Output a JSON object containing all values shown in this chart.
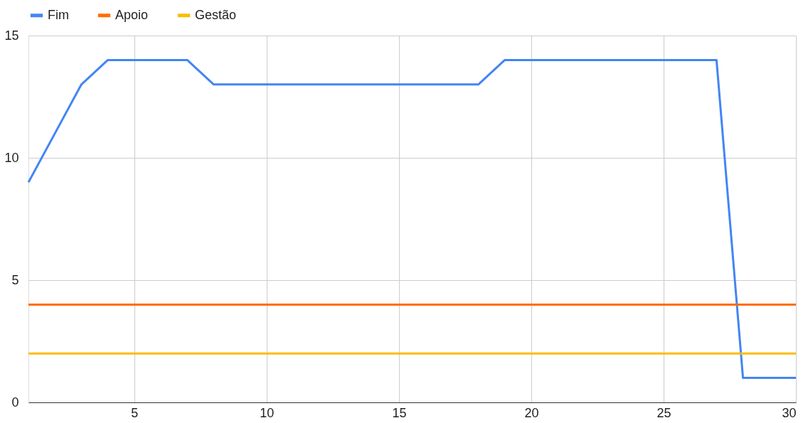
{
  "chart_data": {
    "type": "line",
    "x": [
      1,
      2,
      3,
      4,
      5,
      6,
      7,
      8,
      9,
      10,
      11,
      12,
      13,
      14,
      15,
      16,
      17,
      18,
      19,
      20,
      21,
      22,
      23,
      24,
      25,
      26,
      27,
      28,
      29,
      30
    ],
    "series": [
      {
        "name": "Fim",
        "color": "#4285f4",
        "values": [
          9,
          11,
          13,
          14,
          14,
          14,
          14,
          13,
          13,
          13,
          13,
          13,
          13,
          13,
          13,
          13,
          13,
          13,
          14,
          14,
          14,
          14,
          14,
          14,
          14,
          14,
          14,
          1,
          1,
          1
        ]
      },
      {
        "name": "Apoio",
        "color": "#ff6d01",
        "values": [
          4,
          4,
          4,
          4,
          4,
          4,
          4,
          4,
          4,
          4,
          4,
          4,
          4,
          4,
          4,
          4,
          4,
          4,
          4,
          4,
          4,
          4,
          4,
          4,
          4,
          4,
          4,
          4,
          4,
          4
        ]
      },
      {
        "name": "Gestão",
        "color": "#fbbc04",
        "values": [
          2,
          2,
          2,
          2,
          2,
          2,
          2,
          2,
          2,
          2,
          2,
          2,
          2,
          2,
          2,
          2,
          2,
          2,
          2,
          2,
          2,
          2,
          2,
          2,
          2,
          2,
          2,
          2,
          2,
          2
        ]
      }
    ],
    "xlim": [
      1,
      30
    ],
    "xticks": [
      5,
      10,
      15,
      20,
      25,
      30
    ],
    "ylim": [
      0,
      15
    ],
    "yticks": [
      0,
      5,
      10,
      15
    ],
    "grid": true,
    "legend": "top",
    "marker": "none",
    "line_style": "solid"
  }
}
